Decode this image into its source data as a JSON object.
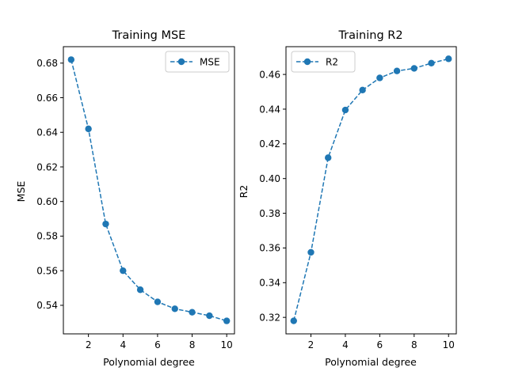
{
  "colors": {
    "series": "#1f77b4",
    "axis": "#000000",
    "legend_border": "#cccccc"
  },
  "chart_data": [
    {
      "type": "line",
      "title": "Training MSE",
      "xlabel": "Polynomial degree",
      "ylabel": "MSE",
      "x": [
        1,
        2,
        3,
        4,
        5,
        6,
        7,
        8,
        9,
        10
      ],
      "series": [
        {
          "name": "MSE",
          "values": [
            0.682,
            0.642,
            0.587,
            0.56,
            0.549,
            0.542,
            0.538,
            0.536,
            0.534,
            0.531
          ]
        }
      ],
      "xlim": [
        0.55,
        10.45
      ],
      "ylim": [
        0.5235,
        0.6895
      ],
      "xticks": [
        2,
        4,
        6,
        8,
        10
      ],
      "xtick_labels": [
        "2",
        "4",
        "6",
        "8",
        "10"
      ],
      "yticks": [
        0.54,
        0.56,
        0.58,
        0.6,
        0.62,
        0.64,
        0.66,
        0.68
      ],
      "ytick_labels": [
        "0.54",
        "0.56",
        "0.58",
        "0.60",
        "0.62",
        "0.64",
        "0.66",
        "0.68"
      ],
      "legend": "upper right",
      "line_style": "dashed",
      "marker": "circle",
      "grid": false
    },
    {
      "type": "line",
      "title": "Training R2",
      "xlabel": "Polynomial degree",
      "ylabel": "R2",
      "x": [
        1,
        2,
        3,
        4,
        5,
        6,
        7,
        8,
        9,
        10
      ],
      "series": [
        {
          "name": "R2",
          "values": [
            0.318,
            0.3575,
            0.412,
            0.4395,
            0.451,
            0.458,
            0.462,
            0.4635,
            0.4665,
            0.469
          ]
        }
      ],
      "xlim": [
        0.55,
        10.45
      ],
      "ylim": [
        0.3105,
        0.476
      ],
      "xticks": [
        2,
        4,
        6,
        8,
        10
      ],
      "xtick_labels": [
        "2",
        "4",
        "6",
        "8",
        "10"
      ],
      "yticks": [
        0.32,
        0.34,
        0.36,
        0.38,
        0.4,
        0.42,
        0.44,
        0.46
      ],
      "ytick_labels": [
        "0.32",
        "0.34",
        "0.36",
        "0.38",
        "0.40",
        "0.42",
        "0.44",
        "0.46"
      ],
      "legend": "upper left",
      "line_style": "dashed",
      "marker": "circle",
      "grid": false
    }
  ]
}
